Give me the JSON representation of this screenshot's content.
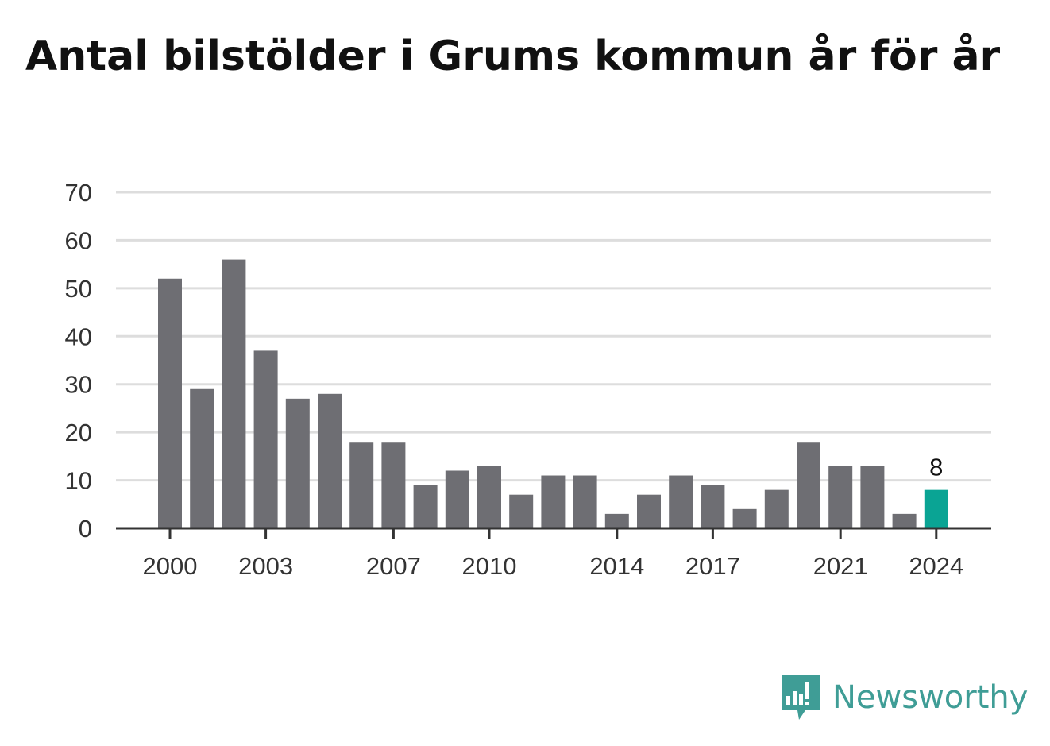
{
  "header": {
    "title": "Antal bilstölder i Grums kommun år för år"
  },
  "brand": {
    "name": "Newsworthy"
  },
  "colors": {
    "bar": "#6e6e73",
    "highlight": "#0aa494",
    "grid": "#dddddd",
    "axis": "#333333",
    "brand": "#3f9d96"
  },
  "chart_data": {
    "type": "bar",
    "title": "Antal bilstölder i Grums kommun år för år",
    "categories": [
      2000,
      2001,
      2002,
      2003,
      2004,
      2005,
      2006,
      2007,
      2008,
      2009,
      2010,
      2011,
      2012,
      2013,
      2014,
      2015,
      2016,
      2017,
      2018,
      2019,
      2020,
      2021,
      2022,
      2023,
      2024
    ],
    "values": [
      52,
      29,
      56,
      37,
      27,
      28,
      18,
      18,
      9,
      12,
      13,
      7,
      11,
      11,
      3,
      7,
      11,
      9,
      4,
      8,
      18,
      13,
      13,
      3,
      8
    ],
    "x_tick_labels": [
      "2000",
      "2003",
      "2007",
      "2010",
      "2014",
      "2017",
      "2021",
      "2024"
    ],
    "y_ticks": [
      0,
      10,
      20,
      30,
      40,
      50,
      60,
      70
    ],
    "ylim": [
      0,
      70
    ],
    "grid": true,
    "highlight": {
      "category": 2024,
      "label": "8"
    },
    "xlabel": "",
    "ylabel": ""
  }
}
